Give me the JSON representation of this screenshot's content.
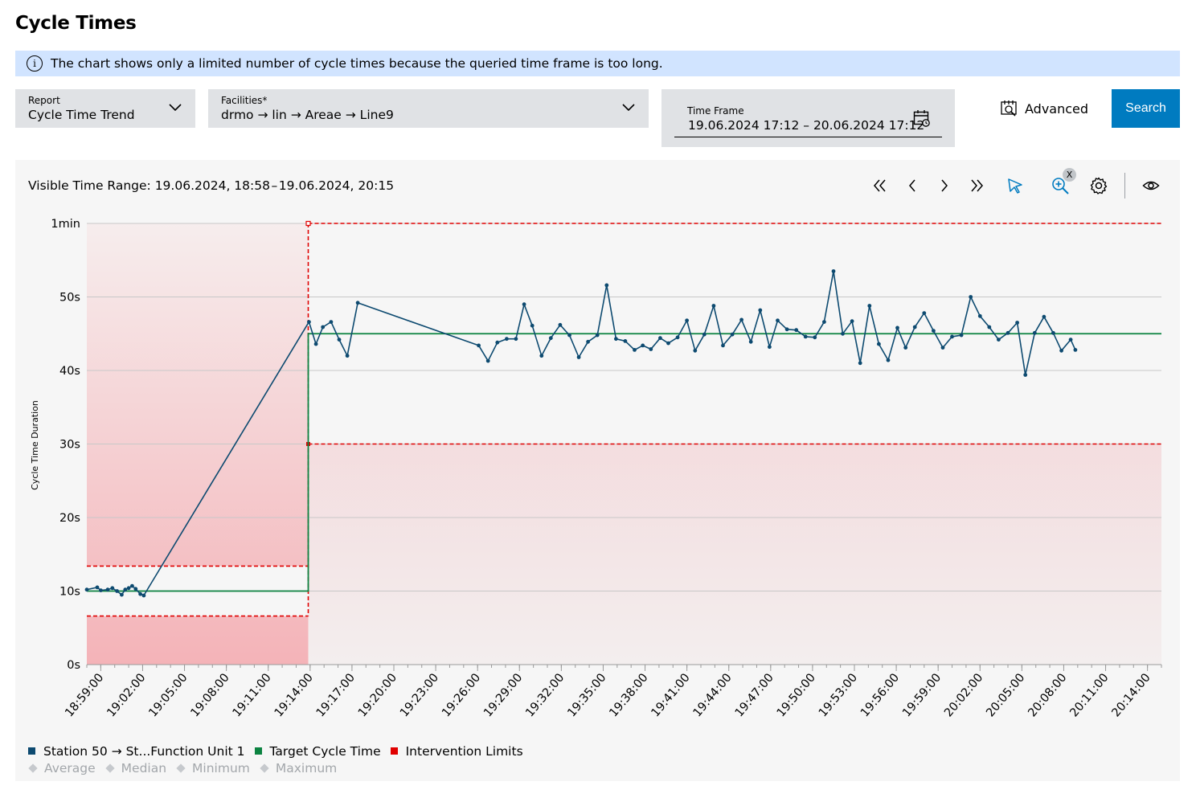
{
  "page": {
    "title": "Cycle Times"
  },
  "info": {
    "icon": "info-icon",
    "text": "The chart shows only a limited number of cycle times because the queried time frame is too long."
  },
  "filters": {
    "report": {
      "label": "Report",
      "value": "Cycle Time Trend"
    },
    "facilities": {
      "label": "Facilities*",
      "value": "drmo → lin → Areae → Line9"
    },
    "timeframe": {
      "label": "Time Frame",
      "value": "19.06.2024 17:12 – 20.06.2024 17:12"
    },
    "advanced_label": "Advanced",
    "search_label": "Search"
  },
  "toolbar": {
    "visible_range": "Visible Time Range: 19.06.2024, 18:58 – 19.06.2024, 20:15",
    "zoom_reset": "X",
    "icons": [
      "first-page-icon",
      "previous-icon",
      "next-icon",
      "last-page-icon",
      "pointer-icon",
      "zoom-in-icon",
      "gear-icon",
      "eye-icon"
    ]
  },
  "colors": {
    "series": "#0d4a70",
    "target": "#0c8341",
    "limits": "#e00000",
    "accent": "#007bc0",
    "banner": "#d1e4ff"
  },
  "legend": {
    "series": [
      {
        "name": "Station 50 → St...Function Unit 1",
        "color": "#0d4a70"
      },
      {
        "name": "Target Cycle Time",
        "color": "#0c8341"
      },
      {
        "name": "Intervention Limits",
        "color": "#e00000"
      }
    ],
    "stats": [
      "Average",
      "Median",
      "Minimum",
      "Maximum"
    ]
  },
  "chart_data": {
    "type": "line",
    "ylabel": "Cycle Time Duration",
    "ylim": [
      0,
      60
    ],
    "ytick_labels": [
      "0s",
      "10s",
      "20s",
      "30s",
      "40s",
      "50s",
      "1min"
    ],
    "ytick_values": [
      0,
      10,
      20,
      30,
      40,
      50,
      60
    ],
    "xlim": [
      "18:58:00",
      "20:15:00"
    ],
    "xtick_labels": [
      "18:59:00",
      "19:02:00",
      "19:05:00",
      "19:08:00",
      "19:11:00",
      "19:14:00",
      "19:17:00",
      "19:20:00",
      "19:23:00",
      "19:26:00",
      "19:29:00",
      "19:32:00",
      "19:35:00",
      "19:38:00",
      "19:41:00",
      "19:44:00",
      "19:47:00",
      "19:50:00",
      "19:53:00",
      "19:56:00",
      "19:59:00",
      "20:02:00",
      "20:05:00",
      "20:08:00",
      "20:11:00",
      "20:14:00"
    ],
    "grid": true,
    "legend_position": "bottom-left",
    "target_cycle_time": [
      {
        "from": "18:58:00",
        "to": "19:13:52",
        "value": 10
      },
      {
        "from": "19:13:52",
        "to": "20:15:00",
        "value": 45
      }
    ],
    "intervention_limits": [
      {
        "from": "18:58:00",
        "to": "19:13:52",
        "lower": 6.6,
        "upper": 13.4
      },
      {
        "from": "19:13:52",
        "to": "20:15:00",
        "lower": 30,
        "upper": 60
      }
    ],
    "series": [
      {
        "name": "Station 50 → St...Function Unit 1",
        "points": [
          [
            "18:58:00",
            10.2
          ],
          [
            "18:58:45",
            10.5
          ],
          [
            "18:59:00",
            10.1
          ],
          [
            "18:59:30",
            10.2
          ],
          [
            "18:59:50",
            10.4
          ],
          [
            "19:00:10",
            10.0
          ],
          [
            "19:00:30",
            9.5
          ],
          [
            "19:00:45",
            10.2
          ],
          [
            "19:01:00",
            10.4
          ],
          [
            "19:01:15",
            10.7
          ],
          [
            "19:01:30",
            10.3
          ],
          [
            "19:01:50",
            9.6
          ],
          [
            "19:02:05",
            9.4
          ],
          [
            "19:13:55",
            46.6
          ],
          [
            "19:14:25",
            43.6
          ],
          [
            "19:14:55",
            45.9
          ],
          [
            "19:15:30",
            46.6
          ],
          [
            "19:16:05",
            44.2
          ],
          [
            "19:16:40",
            42.0
          ],
          [
            "19:17:25",
            49.2
          ],
          [
            "19:26:05",
            43.4
          ],
          [
            "19:26:45",
            41.3
          ],
          [
            "19:27:25",
            43.8
          ],
          [
            "19:28:05",
            44.3
          ],
          [
            "19:28:45",
            44.3
          ],
          [
            "19:29:20",
            49.0
          ],
          [
            "19:29:55",
            46.1
          ],
          [
            "19:30:35",
            42.0
          ],
          [
            "19:31:15",
            44.4
          ],
          [
            "19:31:55",
            46.2
          ],
          [
            "19:32:35",
            44.8
          ],
          [
            "19:33:15",
            41.8
          ],
          [
            "19:33:55",
            43.9
          ],
          [
            "19:34:35",
            44.8
          ],
          [
            "19:35:15",
            51.6
          ],
          [
            "19:35:55",
            44.3
          ],
          [
            "19:36:35",
            44.0
          ],
          [
            "19:37:15",
            42.8
          ],
          [
            "19:37:50",
            43.4
          ],
          [
            "19:38:25",
            42.9
          ],
          [
            "19:39:05",
            44.4
          ],
          [
            "19:39:40",
            43.7
          ],
          [
            "19:40:20",
            44.5
          ],
          [
            "19:41:00",
            46.8
          ],
          [
            "19:41:35",
            42.7
          ],
          [
            "19:42:15",
            44.9
          ],
          [
            "19:42:55",
            48.8
          ],
          [
            "19:43:35",
            43.4
          ],
          [
            "19:44:15",
            44.9
          ],
          [
            "19:44:55",
            46.9
          ],
          [
            "19:45:35",
            43.9
          ],
          [
            "19:46:15",
            48.2
          ],
          [
            "19:46:55",
            43.2
          ],
          [
            "19:47:30",
            46.8
          ],
          [
            "19:48:10",
            45.6
          ],
          [
            "19:48:50",
            45.5
          ],
          [
            "19:49:30",
            44.6
          ],
          [
            "19:50:10",
            44.5
          ],
          [
            "19:50:50",
            46.6
          ],
          [
            "19:51:30",
            53.5
          ],
          [
            "19:52:10",
            45.0
          ],
          [
            "19:52:50",
            46.7
          ],
          [
            "19:53:25",
            41.0
          ],
          [
            "19:54:05",
            48.8
          ],
          [
            "19:54:45",
            43.6
          ],
          [
            "19:55:25",
            41.4
          ],
          [
            "19:56:05",
            45.8
          ],
          [
            "19:56:40",
            43.1
          ],
          [
            "19:57:20",
            45.9
          ],
          [
            "19:58:00",
            47.8
          ],
          [
            "19:58:40",
            45.4
          ],
          [
            "19:59:20",
            43.1
          ],
          [
            "20:00:00",
            44.6
          ],
          [
            "20:00:40",
            44.8
          ],
          [
            "20:01:20",
            50.0
          ],
          [
            "20:02:00",
            47.4
          ],
          [
            "20:02:40",
            45.9
          ],
          [
            "20:03:20",
            44.2
          ],
          [
            "20:04:00",
            45.1
          ],
          [
            "20:04:40",
            46.5
          ],
          [
            "20:05:15",
            39.4
          ],
          [
            "20:05:55",
            45.1
          ],
          [
            "20:06:35",
            47.3
          ],
          [
            "20:07:15",
            45.1
          ],
          [
            "20:07:50",
            42.7
          ],
          [
            "20:08:30",
            44.2
          ],
          [
            "20:08:50",
            42.8
          ]
        ]
      }
    ]
  }
}
